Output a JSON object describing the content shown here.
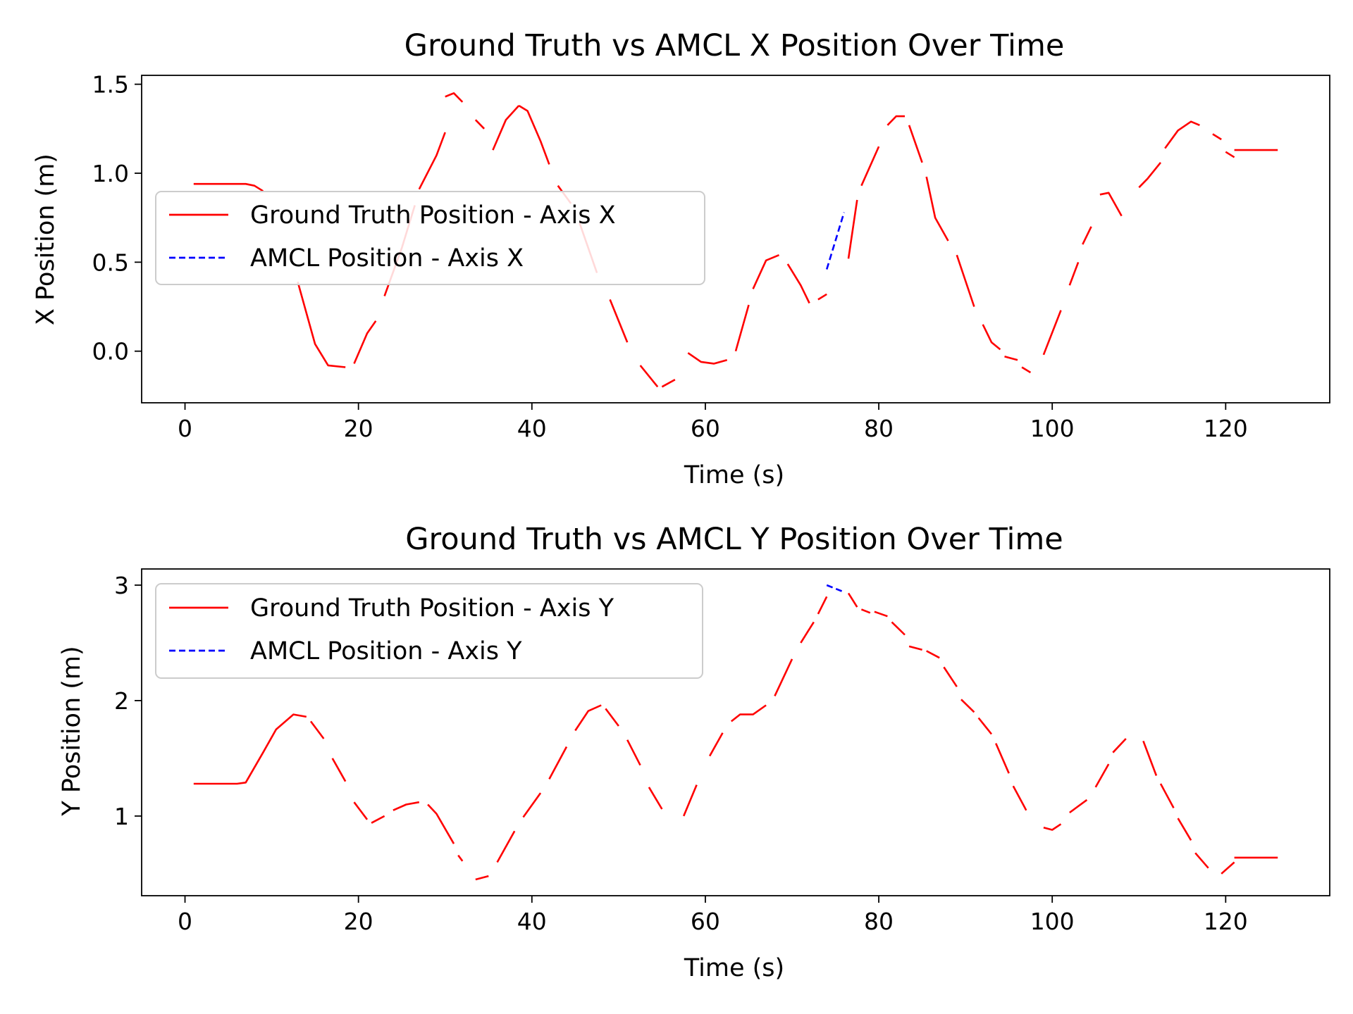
{
  "chart_data": [
    {
      "type": "line",
      "title": "Ground Truth vs AMCL X Position Over Time",
      "xlabel": "Time (s)",
      "ylabel": "X Position (m)",
      "xlim": [
        -5,
        132
      ],
      "ylim": [
        -0.29,
        1.55
      ],
      "xticks": [
        0,
        20,
        40,
        60,
        80,
        100,
        120
      ],
      "yticks": [
        0.0,
        0.5,
        1.0,
        1.5
      ],
      "ytick_labels": [
        "0.0",
        "0.5",
        "1.0",
        "1.5"
      ],
      "grid": false,
      "legend_position": "center-left",
      "series": [
        {
          "name": "Ground Truth Position - Axis X",
          "color": "#ff0000",
          "style": "solid",
          "segments": [
            [
              [
                1,
                0.94
              ],
              [
                7,
                0.94
              ],
              [
                8,
                0.93
              ],
              [
                9,
                0.9
              ]
            ],
            [
              [
                13,
                0.39
              ],
              [
                15,
                0.04
              ],
              [
                16.5,
                -0.08
              ],
              [
                18.5,
                -0.09
              ]
            ],
            [
              [
                19.5,
                -0.07
              ],
              [
                21,
                0.1
              ],
              [
                22,
                0.17
              ]
            ],
            [
              [
                23,
                0.31
              ],
              [
                25,
                0.58
              ],
              [
                26.5,
                0.82
              ]
            ],
            [
              [
                27,
                0.91
              ],
              [
                29,
                1.1
              ],
              [
                30,
                1.23
              ]
            ],
            [
              [
                30,
                1.43
              ],
              [
                31,
                1.45
              ],
              [
                32,
                1.4
              ]
            ],
            [
              [
                33.5,
                1.3
              ],
              [
                34.5,
                1.25
              ]
            ],
            [
              [
                35.5,
                1.13
              ],
              [
                37,
                1.3
              ],
              [
                38.5,
                1.38
              ]
            ],
            [
              [
                38.5,
                1.38
              ],
              [
                39.5,
                1.35
              ],
              [
                41,
                1.18
              ],
              [
                42,
                1.05
              ]
            ],
            [
              [
                43,
                0.93
              ],
              [
                44.5,
                0.83
              ]
            ],
            [
              [
                45.5,
                0.72
              ],
              [
                47.5,
                0.44
              ]
            ],
            [
              [
                49,
                0.29
              ],
              [
                51,
                0.05
              ]
            ],
            [
              [
                52.5,
                -0.08
              ],
              [
                54.5,
                -0.2
              ]
            ],
            [
              [
                55,
                -0.2
              ],
              [
                56.5,
                -0.16
              ]
            ],
            [
              [
                58,
                -0.01
              ],
              [
                59.5,
                -0.06
              ],
              [
                61,
                -0.07
              ],
              [
                62.5,
                -0.05
              ]
            ],
            [
              [
                63.5,
                0.0
              ],
              [
                65,
                0.26
              ]
            ],
            [
              [
                65.5,
                0.35
              ],
              [
                67,
                0.51
              ],
              [
                68.5,
                0.54
              ]
            ],
            [
              [
                69.5,
                0.49
              ],
              [
                71,
                0.37
              ],
              [
                72,
                0.27
              ]
            ],
            [
              [
                73,
                0.29
              ],
              [
                74,
                0.32
              ]
            ],
            [
              [
                76.5,
                0.52
              ],
              [
                77.5,
                0.85
              ]
            ],
            [
              [
                78,
                0.93
              ],
              [
                80,
                1.15
              ]
            ],
            [
              [
                81,
                1.27
              ],
              [
                82,
                1.32
              ],
              [
                83,
                1.32
              ]
            ],
            [
              [
                83.5,
                1.27
              ],
              [
                85,
                1.06
              ]
            ],
            [
              [
                85.5,
                0.98
              ],
              [
                86.5,
                0.75
              ],
              [
                88,
                0.62
              ]
            ],
            [
              [
                89,
                0.54
              ],
              [
                91,
                0.25
              ]
            ],
            [
              [
                92,
                0.15
              ],
              [
                93,
                0.05
              ],
              [
                94,
                0.01
              ]
            ],
            [
              [
                94.5,
                -0.03
              ],
              [
                96,
                -0.05
              ]
            ],
            [
              [
                96.5,
                -0.09
              ],
              [
                97.5,
                -0.12
              ]
            ],
            [
              [
                99,
                -0.02
              ],
              [
                101,
                0.23
              ]
            ],
            [
              [
                102,
                0.37
              ],
              [
                103,
                0.5
              ]
            ],
            [
              [
                103.5,
                0.6
              ],
              [
                104.5,
                0.7
              ]
            ],
            [
              [
                105.5,
                0.88
              ],
              [
                106.5,
                0.89
              ],
              [
                108,
                0.76
              ]
            ],
            [
              [
                110,
                0.92
              ],
              [
                111,
                0.97
              ],
              [
                112.5,
                1.06
              ]
            ],
            [
              [
                113,
                1.14
              ],
              [
                114.5,
                1.24
              ],
              [
                116,
                1.29
              ],
              [
                117,
                1.27
              ]
            ],
            [
              [
                118.5,
                1.22
              ],
              [
                119.5,
                1.19
              ]
            ],
            [
              [
                120,
                1.12
              ],
              [
                121,
                1.09
              ]
            ],
            [
              [
                121,
                1.13
              ],
              [
                126,
                1.13
              ]
            ]
          ]
        },
        {
          "name": "AMCL Position - Axis X",
          "color": "#0000ff",
          "style": "dashed",
          "segments": [
            [
              [
                74,
                0.46
              ],
              [
                76,
                0.78
              ]
            ]
          ]
        }
      ]
    },
    {
      "type": "line",
      "title": "Ground Truth vs AMCL Y Position Over Time",
      "xlabel": "Time (s)",
      "ylabel": "Y Position (m)",
      "xlim": [
        -5,
        132
      ],
      "ylim": [
        0.31,
        3.14
      ],
      "xticks": [
        0,
        20,
        40,
        60,
        80,
        100,
        120
      ],
      "yticks": [
        1,
        2,
        3
      ],
      "ytick_labels": [
        "1",
        "2",
        "3"
      ],
      "grid": false,
      "legend_position": "top-left",
      "series": [
        {
          "name": "Ground Truth Position - Axis Y",
          "color": "#ff0000",
          "style": "solid",
          "segments": [
            [
              [
                1,
                1.28
              ],
              [
                6,
                1.28
              ],
              [
                7,
                1.29
              ],
              [
                9,
                1.55
              ],
              [
                10.5,
                1.75
              ],
              [
                12.5,
                1.88
              ],
              [
                14,
                1.86
              ]
            ],
            [
              [
                14.5,
                1.82
              ],
              [
                16,
                1.67
              ]
            ],
            [
              [
                17,
                1.5
              ],
              [
                18.5,
                1.3
              ]
            ],
            [
              [
                19.5,
                1.12
              ],
              [
                21,
                0.97
              ]
            ],
            [
              [
                21.5,
                0.94
              ],
              [
                23,
                1.0
              ]
            ],
            [
              [
                24,
                1.05
              ],
              [
                25.5,
                1.1
              ],
              [
                27,
                1.12
              ]
            ],
            [
              [
                28,
                1.1
              ],
              [
                29,
                1.02
              ],
              [
                31,
                0.76
              ]
            ],
            [
              [
                31.5,
                0.66
              ],
              [
                32,
                0.61
              ]
            ],
            [
              [
                33.5,
                0.45
              ],
              [
                35,
                0.48
              ]
            ],
            [
              [
                36,
                0.6
              ],
              [
                38,
                0.87
              ]
            ],
            [
              [
                39,
                0.99
              ],
              [
                41,
                1.2
              ]
            ],
            [
              [
                42,
                1.32
              ],
              [
                44,
                1.6
              ]
            ],
            [
              [
                45,
                1.74
              ],
              [
                46.5,
                1.91
              ],
              [
                48,
                1.96
              ]
            ],
            [
              [
                48.5,
                1.93
              ],
              [
                50,
                1.78
              ]
            ],
            [
              [
                51,
                1.66
              ],
              [
                52.5,
                1.44
              ]
            ],
            [
              [
                53.5,
                1.25
              ],
              [
                55,
                1.06
              ]
            ],
            [
              [
                57.5,
                1.0
              ],
              [
                59,
                1.27
              ]
            ],
            [
              [
                60.5,
                1.52
              ],
              [
                62,
                1.72
              ]
            ],
            [
              [
                63,
                1.82
              ],
              [
                64,
                1.88
              ],
              [
                65.5,
                1.88
              ],
              [
                67,
                1.96
              ]
            ],
            [
              [
                68,
                2.04
              ],
              [
                70,
                2.36
              ]
            ],
            [
              [
                71,
                2.5
              ],
              [
                72.5,
                2.68
              ]
            ],
            [
              [
                73,
                2.75
              ],
              [
                74,
                2.9
              ]
            ],
            [
              [
                76.5,
                2.93
              ],
              [
                77.5,
                2.81
              ]
            ],
            [
              [
                78,
                2.79
              ],
              [
                79,
                2.76
              ]
            ],
            [
              [
                79.5,
                2.77
              ],
              [
                81,
                2.73
              ]
            ],
            [
              [
                81.5,
                2.68
              ],
              [
                83,
                2.57
              ]
            ],
            [
              [
                83.5,
                2.47
              ],
              [
                85,
                2.44
              ]
            ],
            [
              [
                85.5,
                2.43
              ],
              [
                87,
                2.37
              ]
            ],
            [
              [
                87.5,
                2.29
              ],
              [
                89,
                2.12
              ]
            ],
            [
              [
                89.5,
                2.01
              ],
              [
                91,
                1.9
              ]
            ],
            [
              [
                91.5,
                1.85
              ],
              [
                93,
                1.71
              ]
            ],
            [
              [
                93.5,
                1.63
              ],
              [
                95,
                1.37
              ]
            ],
            [
              [
                95.5,
                1.26
              ],
              [
                97,
                1.05
              ]
            ],
            [
              [
                99,
                0.9
              ],
              [
                100,
                0.88
              ],
              [
                101,
                0.93
              ]
            ],
            [
              [
                102,
                1.03
              ],
              [
                104,
                1.14
              ]
            ],
            [
              [
                105,
                1.25
              ],
              [
                106.5,
                1.45
              ]
            ],
            [
              [
                107,
                1.55
              ],
              [
                108.5,
                1.67
              ]
            ],
            [
              [
                110.5,
                1.65
              ],
              [
                112,
                1.35
              ]
            ],
            [
              [
                112.5,
                1.28
              ],
              [
                114,
                1.07
              ]
            ],
            [
              [
                114.5,
                0.98
              ],
              [
                116,
                0.79
              ]
            ],
            [
              [
                116.5,
                0.68
              ],
              [
                118,
                0.55
              ]
            ],
            [
              [
                119.5,
                0.5
              ],
              [
                121,
                0.6
              ]
            ],
            [
              [
                121,
                0.64
              ],
              [
                126,
                0.64
              ]
            ]
          ]
        },
        {
          "name": "AMCL Position - Axis Y",
          "color": "#0000ff",
          "style": "dashed",
          "segments": [
            [
              [
                74,
                3.0
              ],
              [
                76,
                2.94
              ]
            ]
          ]
        }
      ]
    }
  ]
}
